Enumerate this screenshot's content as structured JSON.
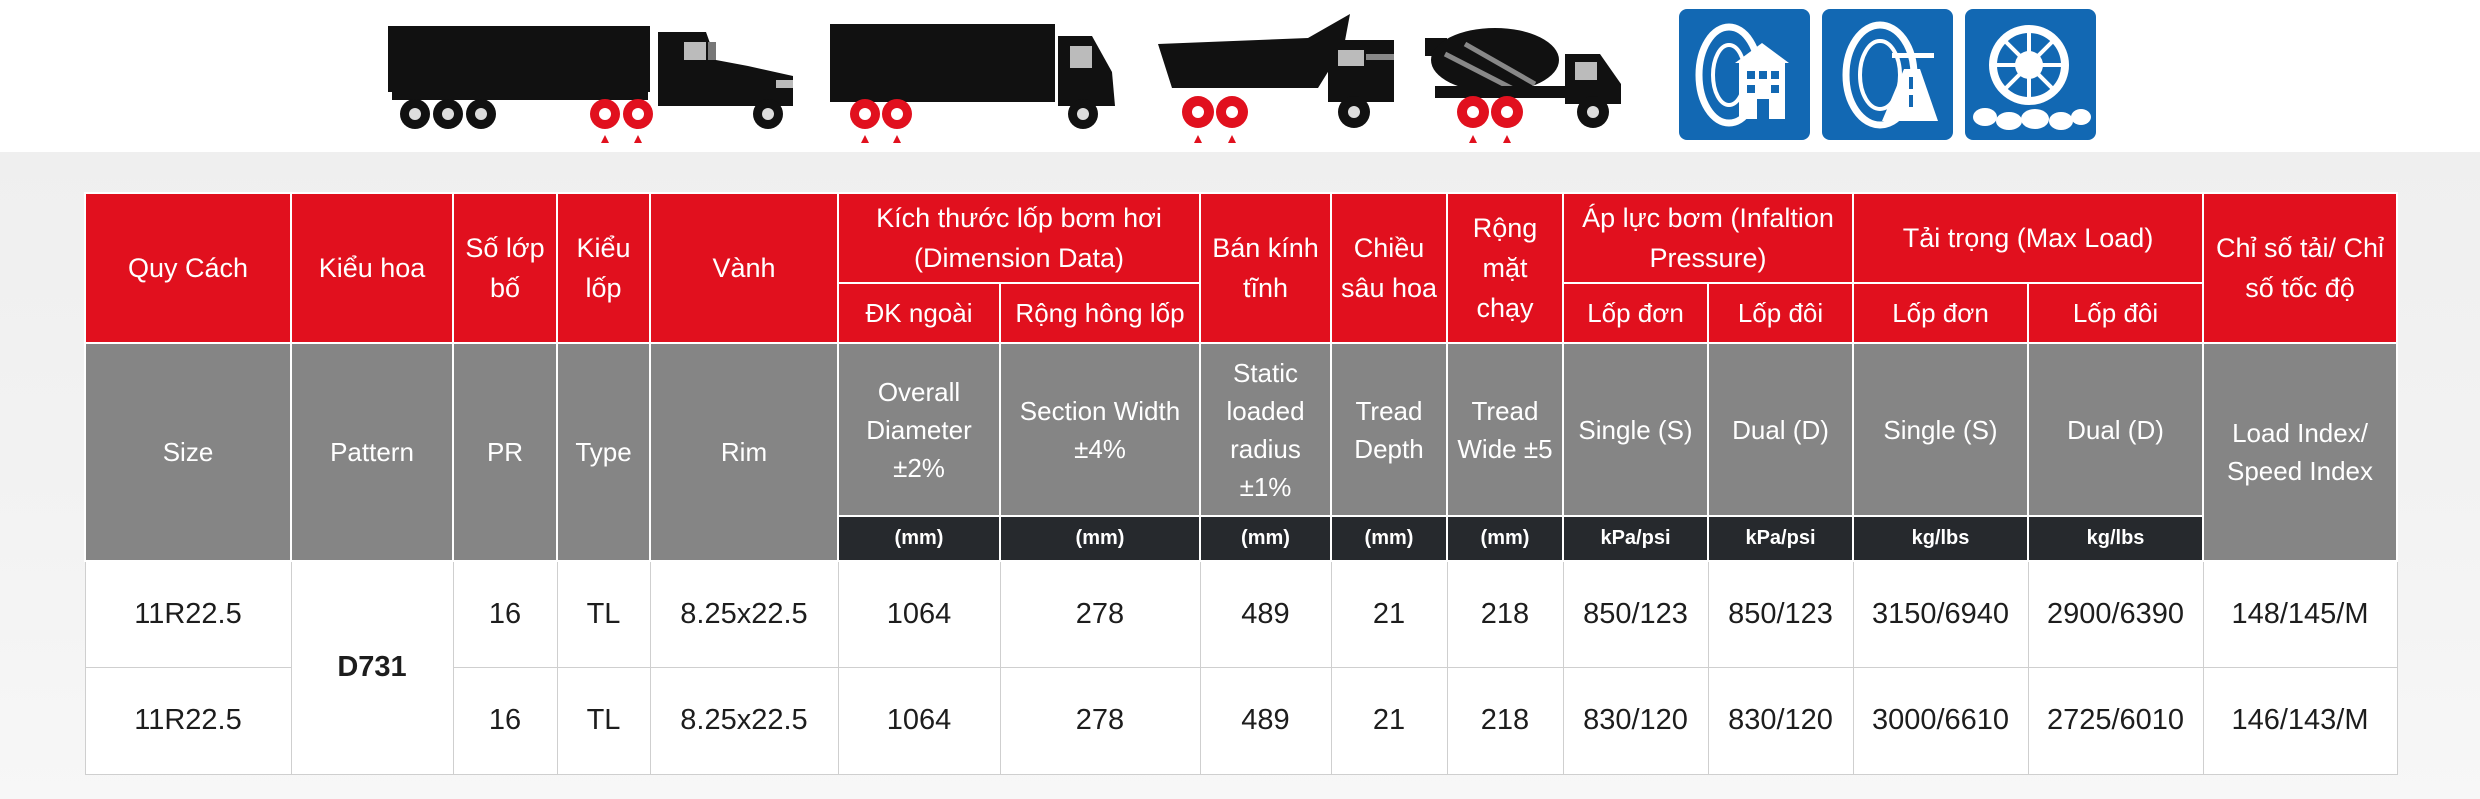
{
  "table": {
    "header_vi": {
      "size": "Quy Cách",
      "pattern": "Kiểu hoa",
      "pr": "Số lớp bố",
      "type": "Kiểu lốp",
      "rim": "Vành",
      "dimension": "Kích thước lốp bơm hơi (Dimension Data)",
      "overall_diameter": "ĐK ngoài",
      "section_width": "Rộng hông lốp",
      "static_radius": "Bán kính tĩnh",
      "tread_depth": "Chiều sâu hoa",
      "tread_wide": "Rộng mặt chạy",
      "inflation": "Áp lực bơm (Infaltion Pressure)",
      "inflation_single": "Lốp đơn",
      "inflation_dual": "Lốp đôi",
      "max_load": "Tải trọng (Max Load)",
      "load_single": "Lốp đơn",
      "load_dual": "Lốp đôi",
      "load_speed_index": "Chỉ số tải/ Chỉ số tốc độ"
    },
    "header_en": {
      "size": "Size",
      "pattern": "Pattern",
      "pr": "PR",
      "type": "Type",
      "rim": "Rim",
      "overall_diameter": "Overall Diameter ±2%",
      "section_width": "Section Width ±4%",
      "static_radius": "Static loaded radius ±1%",
      "tread_depth": "Tread Depth",
      "tread_wide": "Tread Wide ±5",
      "inflation_single": "Single (S)",
      "inflation_dual": "Dual (D)",
      "load_single": "Single (S)",
      "load_dual": "Dual (D)",
      "load_speed_index": "Load Index/ Speed Index"
    },
    "units": {
      "overall_diameter": "(mm)",
      "section_width": "(mm)",
      "static_radius": "(mm)",
      "tread_depth": "(mm)",
      "tread_wide": "(mm)",
      "inflation_single": "kPa/psi",
      "inflation_dual": "kPa/psi",
      "load_single": "kg/lbs",
      "load_dual": "kg/lbs"
    },
    "pattern_name": "D731",
    "rows": [
      {
        "size": "11R22.5",
        "pr": "16",
        "type": "TL",
        "rim": "8.25x22.5",
        "overall_diameter": "1064",
        "section_width": "278",
        "static_radius": "489",
        "tread_depth": "21",
        "tread_wide": "218",
        "inflation_single": "850/123",
        "inflation_dual": "850/123",
        "load_single": "3150/6940",
        "load_dual": "2900/6390",
        "index": "148/145/M"
      },
      {
        "size": "11R22.5",
        "pr": "16",
        "type": "TL",
        "rim": "8.25x22.5",
        "overall_diameter": "1064",
        "section_width": "278",
        "static_radius": "489",
        "tread_depth": "21",
        "tread_wide": "218",
        "inflation_single": "830/120",
        "inflation_dual": "830/120",
        "load_single": "3000/6610",
        "load_dual": "2725/6010",
        "index": "146/143/M"
      }
    ]
  },
  "icons": {
    "vehicles": [
      "semi-truck-icon",
      "box-truck-icon",
      "dump-truck-icon",
      "cement-mixer-icon"
    ],
    "applications": [
      "urban-road-tire-icon",
      "highway-tire-icon",
      "offroad-tire-icon"
    ],
    "colors": {
      "header_red": "#e1101e",
      "header_gray": "#858585",
      "unit_dark": "#26292d",
      "badge_blue": "#1268b3",
      "pattern_red": "#e1101e"
    }
  }
}
